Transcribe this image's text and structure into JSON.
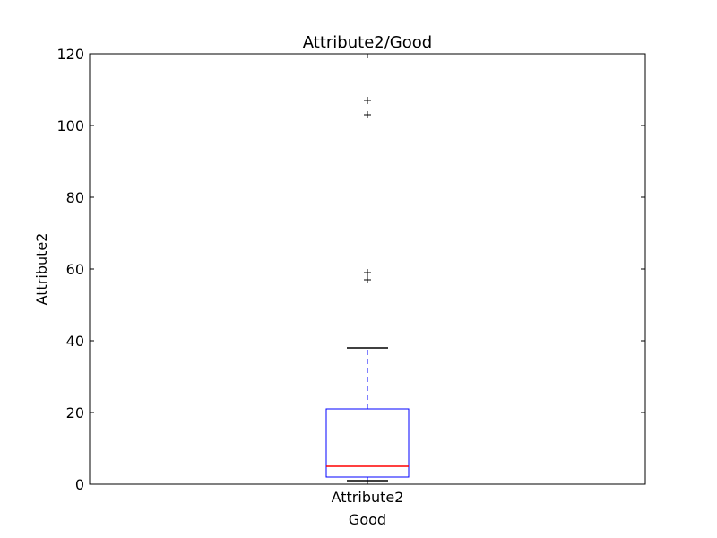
{
  "chart_data": {
    "type": "box",
    "title": "Attribute2/Good",
    "xlabel": "Good",
    "ylabel": "Attribute2",
    "ylim": [
      0,
      120
    ],
    "yticks": [
      0,
      20,
      40,
      60,
      80,
      100,
      120
    ],
    "categories": [
      "Attribute2"
    ],
    "series": [
      {
        "whisker_low": 1,
        "q1": 2,
        "median": 5,
        "q3": 21,
        "whisker_high": 38,
        "outliers": [
          57,
          59,
          103,
          107
        ]
      }
    ],
    "colors": {
      "box": "#0000ff",
      "whisker": "#0000ff",
      "median": "#ff0000",
      "cap": "#000000",
      "flier": "#000000"
    },
    "grid": false
  }
}
